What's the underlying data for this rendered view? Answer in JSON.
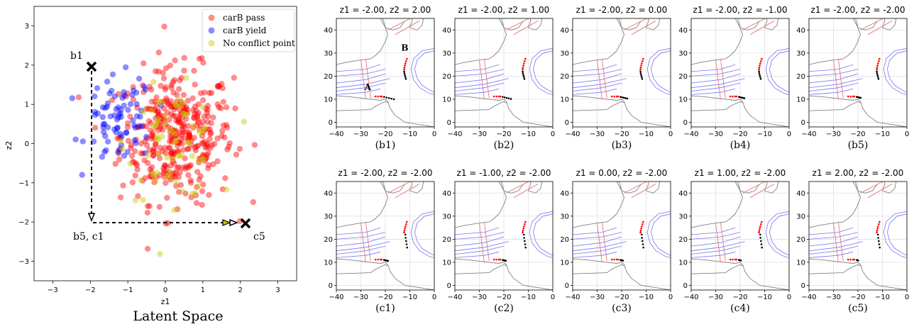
{
  "latent": {
    "title": "Latent Space",
    "xlabel": "z1",
    "ylabel": "z2",
    "xticks": [
      "−3",
      "−2",
      "−1",
      "0",
      "1",
      "2",
      "3"
    ],
    "yticks": [
      "−3",
      "−2",
      "−1",
      "0",
      "1",
      "2",
      "3"
    ],
    "legend": [
      {
        "label": "carB pass",
        "color": "#ff0000"
      },
      {
        "label": "carB yield",
        "color": "#0000ff"
      },
      {
        "label": "No conflict point",
        "color": "#c8c800"
      }
    ],
    "markers": [
      {
        "label": "b1",
        "x": -2,
        "y": 2
      },
      {
        "label": "c5",
        "x": 2,
        "y": -2
      }
    ],
    "corner_label": "b5, c1"
  },
  "panels": [
    {
      "title": "z1 = -2.00, z2 = 2.00",
      "caption": "(b1)"
    },
    {
      "title": "z1 = -2.00, z2 = 1.00",
      "caption": "(b2)"
    },
    {
      "title": "z1 = -2.00, z2 = 0.00",
      "caption": "(b3)"
    },
    {
      "title": "z1 = -2.00, z2 = -1.00",
      "caption": "(b4)"
    },
    {
      "title": "z1 = -2.00, z2 = -2.00",
      "caption": "(b5)"
    },
    {
      "title": "z1 = -2.00, z2 = -2.00",
      "caption": "(c1)"
    },
    {
      "title": "z1 = -1.00, z2 = -2.00",
      "caption": "(c2)"
    },
    {
      "title": "z1 = 0.00, z2 = -2.00",
      "caption": "(c3)"
    },
    {
      "title": "z1 = 1.00, z2 = -2.00",
      "caption": "(c4)"
    },
    {
      "title": "z1 = 2.00, z2 = -2.00",
      "caption": "(c5)"
    }
  ],
  "panel_axes": {
    "xticks": [
      "−40",
      "−30",
      "−20",
      "−10",
      "0"
    ],
    "yticks": [
      "0",
      "10",
      "20",
      "30",
      "40"
    ],
    "xlim": [
      -40,
      0
    ],
    "ylim": [
      -2,
      45
    ]
  },
  "labels": {
    "A": "A",
    "B": "B"
  },
  "chart_data": [
    {
      "type": "scatter",
      "title": "Latent Space",
      "xlabel": "z1",
      "ylabel": "z2",
      "xlim": [
        -3.5,
        3.5
      ],
      "ylim": [
        -3.5,
        3.5
      ],
      "legend_position": "top-right",
      "series": [
        {
          "name": "carB pass",
          "color": "#ff0000",
          "approx_center": [
            0.3,
            0.2
          ],
          "approx_count": 400
        },
        {
          "name": "carB yield",
          "color": "#0000ff",
          "approx_center": [
            -1.2,
            0.6
          ],
          "approx_count": 80
        },
        {
          "name": "No conflict point",
          "color": "#c8c800",
          "approx_center": [
            0.2,
            0.0
          ],
          "approx_count": 70
        }
      ],
      "path": [
        {
          "x": -2,
          "y": 2
        },
        {
          "x": -2,
          "y": -2
        },
        {
          "x": 2,
          "y": -2
        }
      ]
    },
    {
      "type": "scatter",
      "panel": "(b1)",
      "xlim": [
        -40,
        0
      ],
      "ylim": [
        -2,
        45
      ],
      "series": [
        {
          "name": "carA red",
          "color": "#ff0000",
          "x": [
            -24,
            -23,
            -22,
            -21.5
          ],
          "y": [
            11.2,
            11.2,
            11.1,
            11.0
          ]
        },
        {
          "name": "carA black",
          "color": "#000000",
          "x": [
            -20.5,
            -19.5,
            -18.5,
            -17.5,
            -16.5
          ],
          "y": [
            10.9,
            10.7,
            10.5,
            10.2,
            10.0
          ]
        },
        {
          "name": "carB red",
          "color": "#ff0000",
          "x": [
            -11.2,
            -11.5,
            -11.8,
            -12.0,
            -12.2,
            -12.3
          ],
          "y": [
            27.5,
            26.5,
            25.5,
            24.6,
            23.7,
            22.9
          ]
        },
        {
          "name": "carB black",
          "color": "#000000",
          "x": [
            -12.3,
            -12.2,
            -12.0,
            -11.8,
            -11.6
          ],
          "y": [
            22.0,
            21.2,
            20.4,
            19.6,
            18.8
          ]
        }
      ]
    }
  ]
}
